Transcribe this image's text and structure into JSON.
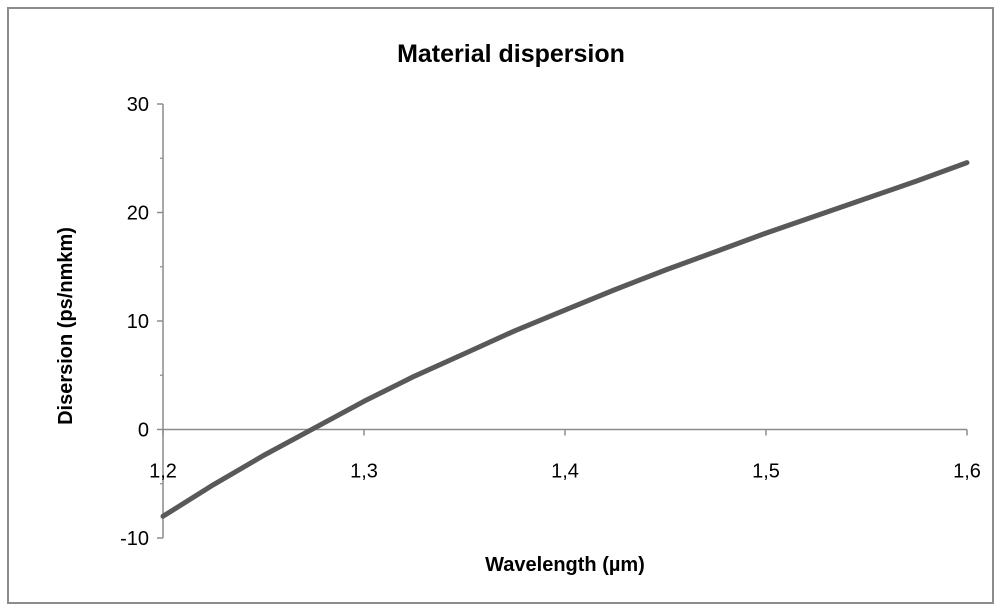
{
  "chart_data": {
    "type": "line",
    "title": "Material dispersion",
    "xlabel": "Wavelength (µm)",
    "ylabel": "Disersion (ps/nmkm)",
    "xlim": [
      1.2,
      1.6
    ],
    "ylim": [
      -10,
      30
    ],
    "x_ticks": [
      1.2,
      1.3,
      1.4,
      1.5,
      1.6
    ],
    "x_tick_labels": [
      "1,2",
      "1,3",
      "1,4",
      "1,5",
      "1,6"
    ],
    "y_ticks": [
      -10,
      0,
      10,
      20,
      30
    ],
    "y_tick_labels": [
      "-10",
      "0",
      "10",
      "20",
      "30"
    ],
    "grid": false,
    "legend": "none",
    "series": [
      {
        "color": "#595959",
        "x": [
          1.2,
          1.225,
          1.25,
          1.275,
          1.3,
          1.325,
          1.35,
          1.375,
          1.4,
          1.425,
          1.45,
          1.475,
          1.5,
          1.525,
          1.55,
          1.575,
          1.6
        ],
        "y": [
          -8.0,
          -5.1,
          -2.4,
          0.1,
          2.6,
          4.9,
          7.0,
          9.1,
          11.0,
          12.9,
          14.7,
          16.4,
          18.1,
          19.7,
          21.3,
          22.9,
          24.6
        ]
      }
    ]
  }
}
